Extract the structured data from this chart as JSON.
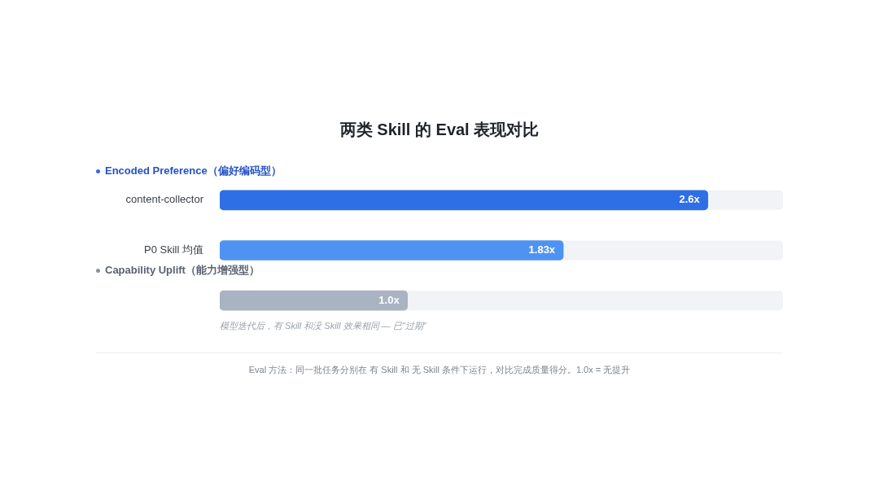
{
  "chart_data": {
    "type": "bar",
    "orientation": "horizontal",
    "title": "两类 Skill 的 Eval 表现对比",
    "categories": [
      "content-collector",
      "P0 Skill 均值",
      null
    ],
    "values": [
      2.6,
      1.83,
      1.0
    ],
    "colors": [
      "#2f6fe6",
      "#4f93f2",
      "#a9b3c2"
    ],
    "value_labels": [
      "2.6x",
      "1.83x",
      "1.0x"
    ],
    "xlim": [
      0,
      3
    ],
    "tick_labels": "y",
    "legend": false,
    "annotations": [
      "Encoded Preference（偏好编码型）",
      "Capability Uplift（能力增强型）",
      "模型迭代后，有 Skill 和没 Skill 效果相同 — 已\"过期\"",
      "Eval 方法：同一批任务分别在 有 Skill 和 无 Skill 条件下运行，对比完成质量得分。1.0x = 无提升"
    ]
  }
}
